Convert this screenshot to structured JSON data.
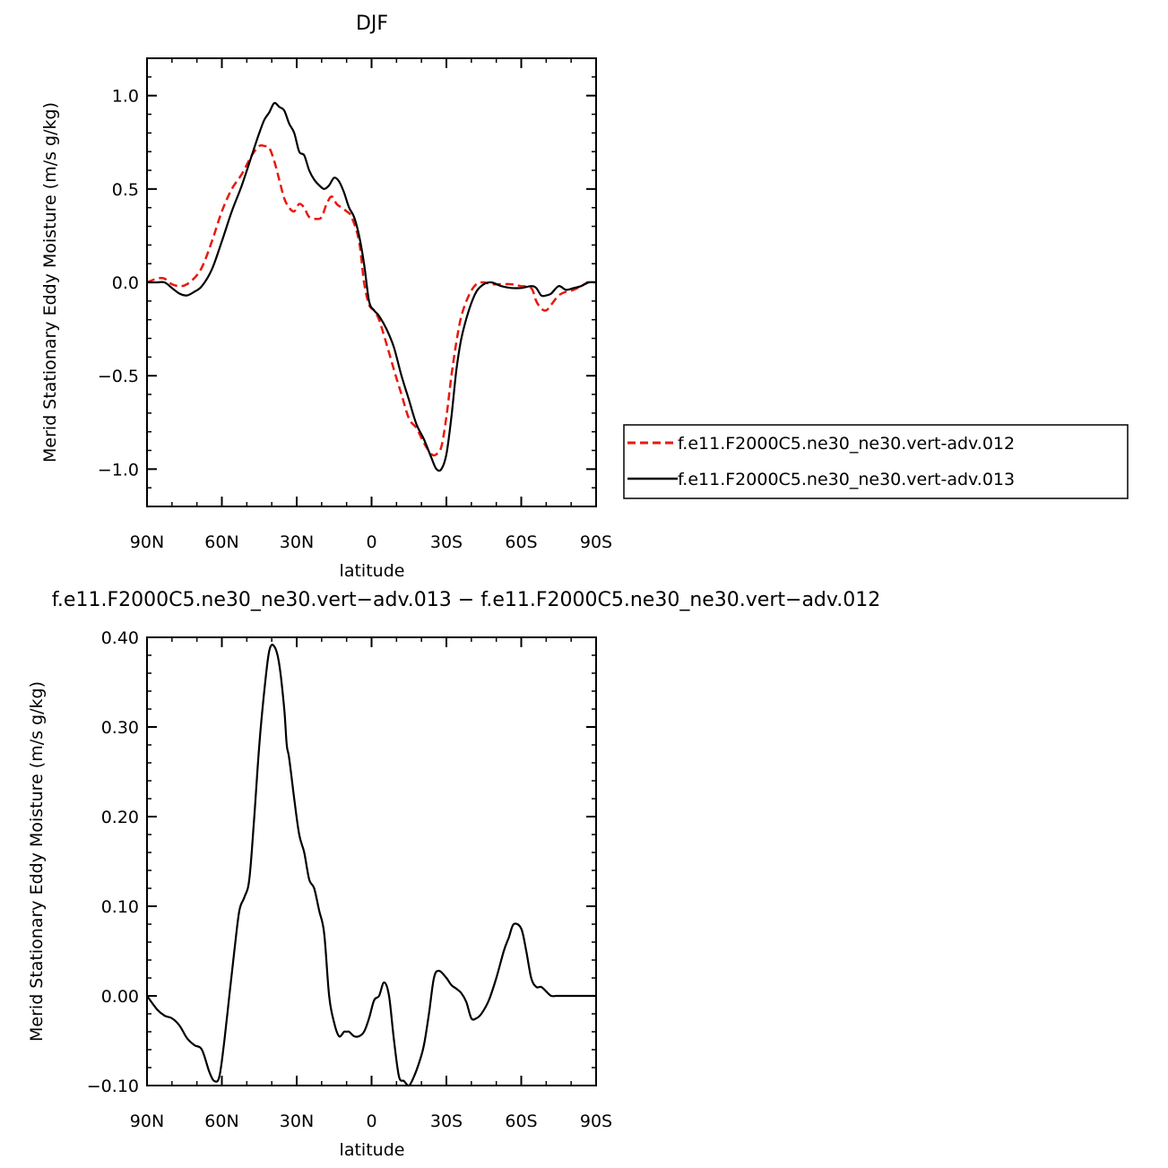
{
  "chart_data": [
    {
      "type": "line",
      "title": "DJF",
      "xlabel": "latitude",
      "ylabel": "Merid Stationary Eddy Moisture (m/s g/kg)",
      "xlim": [
        90,
        -90
      ],
      "ylim": [
        -1.2,
        1.2
      ],
      "x_ticks": [
        {
          "value": 90,
          "label": "90N"
        },
        {
          "value": 60,
          "label": "60N"
        },
        {
          "value": 30,
          "label": "30N"
        },
        {
          "value": 0,
          "label": "0"
        },
        {
          "value": -30,
          "label": "30S"
        },
        {
          "value": -60,
          "label": "60S"
        },
        {
          "value": -90,
          "label": "90S"
        }
      ],
      "y_ticks": [
        {
          "value": 1.0,
          "label": "1.0"
        },
        {
          "value": 0.5,
          "label": "0.5"
        },
        {
          "value": 0.0,
          "label": "0.0"
        },
        {
          "value": -0.5,
          "label": "−0.5"
        },
        {
          "value": -1.0,
          "label": "−1.0"
        }
      ],
      "legend_position": "right",
      "series": [
        {
          "name": "f.e11.F2000C5.ne30_ne30.vert-adv.012",
          "color": "#e8190f",
          "dash": "dashed",
          "x": [
            90,
            86,
            83,
            80,
            76,
            72,
            68,
            64,
            60,
            56,
            52,
            48,
            45,
            43,
            41,
            39,
            37,
            35,
            33,
            31,
            29,
            27,
            25,
            22,
            20,
            18,
            16,
            14,
            12,
            10,
            8,
            5,
            3,
            1,
            -1,
            -3,
            -6,
            -9,
            -12,
            -15,
            -18,
            -21,
            -24,
            -26,
            -28,
            -30,
            -32,
            -34,
            -36,
            -39,
            -42,
            -45,
            -48,
            -52,
            -56,
            -60,
            -64,
            -66,
            -68,
            -70,
            -72,
            -75,
            -78,
            -81,
            -84,
            -87,
            -90
          ],
          "y": [
            0.0,
            0.02,
            0.02,
            -0.01,
            -0.02,
            0.01,
            0.08,
            0.22,
            0.38,
            0.5,
            0.58,
            0.68,
            0.73,
            0.73,
            0.72,
            0.65,
            0.55,
            0.45,
            0.4,
            0.38,
            0.42,
            0.4,
            0.35,
            0.34,
            0.35,
            0.42,
            0.46,
            0.42,
            0.4,
            0.38,
            0.35,
            0.22,
            0.0,
            -0.12,
            -0.15,
            -0.2,
            -0.33,
            -0.47,
            -0.6,
            -0.73,
            -0.78,
            -0.86,
            -0.92,
            -0.92,
            -0.88,
            -0.72,
            -0.5,
            -0.32,
            -0.18,
            -0.07,
            -0.01,
            0.0,
            -0.01,
            -0.01,
            -0.01,
            -0.02,
            -0.03,
            -0.1,
            -0.14,
            -0.15,
            -0.12,
            -0.07,
            -0.05,
            -0.04,
            -0.02,
            0.0,
            0.0
          ]
        },
        {
          "name": "f.e11.F2000C5.ne30_ne30.vert-adv.013",
          "color": "#000000",
          "dash": "solid",
          "x": [
            90,
            86,
            83,
            80,
            77,
            74,
            71,
            68,
            64,
            60,
            56,
            52,
            48,
            45,
            43,
            41,
            39,
            37,
            35,
            33,
            31,
            29,
            27,
            25,
            23,
            21,
            19,
            17,
            15,
            13,
            11,
            9,
            7,
            5,
            3,
            1,
            -1,
            -3,
            -6,
            -9,
            -12,
            -15,
            -18,
            -21,
            -24,
            -26,
            -28,
            -30,
            -32,
            -34,
            -36,
            -39,
            -42,
            -45,
            -48,
            -52,
            -56,
            -60,
            -64,
            -66,
            -68,
            -70,
            -72,
            -75,
            -78,
            -81,
            -84,
            -87,
            -90
          ],
          "y": [
            0.0,
            0.0,
            0.0,
            -0.03,
            -0.06,
            -0.07,
            -0.05,
            -0.02,
            0.07,
            0.22,
            0.38,
            0.52,
            0.68,
            0.8,
            0.87,
            0.91,
            0.96,
            0.94,
            0.92,
            0.85,
            0.8,
            0.7,
            0.68,
            0.6,
            0.55,
            0.52,
            0.5,
            0.52,
            0.56,
            0.54,
            0.48,
            0.4,
            0.35,
            0.25,
            0.1,
            -0.1,
            -0.15,
            -0.18,
            -0.25,
            -0.35,
            -0.5,
            -0.63,
            -0.76,
            -0.84,
            -0.94,
            -1.0,
            -1.0,
            -0.92,
            -0.72,
            -0.47,
            -0.3,
            -0.15,
            -0.05,
            -0.01,
            0.0,
            -0.02,
            -0.03,
            -0.03,
            -0.02,
            -0.03,
            -0.07,
            -0.07,
            -0.06,
            -0.02,
            -0.04,
            -0.03,
            -0.02,
            0.0,
            0.0
          ]
        }
      ]
    },
    {
      "type": "line",
      "title": "f.e11.F2000C5.ne30_ne30.vert−adv.013 − f.e11.F2000C5.ne30_ne30.vert−adv.012",
      "xlabel": "latitude",
      "ylabel": "Merid Stationary Eddy Moisture (m/s g/kg)",
      "xlim": [
        90,
        -90
      ],
      "ylim": [
        -0.1,
        0.4
      ],
      "x_ticks": [
        {
          "value": 90,
          "label": "90N"
        },
        {
          "value": 60,
          "label": "60N"
        },
        {
          "value": 30,
          "label": "30N"
        },
        {
          "value": 0,
          "label": "0"
        },
        {
          "value": -30,
          "label": "30S"
        },
        {
          "value": -60,
          "label": "60S"
        },
        {
          "value": -90,
          "label": "90S"
        }
      ],
      "y_ticks": [
        {
          "value": 0.4,
          "label": "0.40"
        },
        {
          "value": 0.3,
          "label": "0.30"
        },
        {
          "value": 0.2,
          "label": "0.20"
        },
        {
          "value": 0.1,
          "label": "0.10"
        },
        {
          "value": 0.0,
          "label": "0.00"
        },
        {
          "value": -0.1,
          "label": "−0.10"
        }
      ],
      "series": [
        {
          "color": "#000000",
          "dash": "solid",
          "x": [
            90,
            86,
            83,
            80,
            77,
            74,
            71,
            68,
            65,
            63,
            61,
            59,
            57,
            55,
            53,
            51,
            49,
            47,
            45,
            43,
            41,
            39,
            37,
            35,
            34,
            33,
            31,
            29,
            27,
            25,
            23,
            21,
            19,
            17,
            15,
            13,
            11,
            10,
            9,
            7,
            5,
            3,
            1,
            -1,
            -3,
            -5,
            -7,
            -9,
            -11,
            -13,
            -15,
            -17,
            -19,
            -21,
            -23,
            -25,
            -27,
            -30,
            -32,
            -34,
            -36,
            -38,
            -40,
            -42,
            -44,
            -47,
            -50,
            -53,
            -55,
            -57,
            -60,
            -62,
            -64,
            -66,
            -68,
            -70,
            -72,
            -74,
            -76,
            -78,
            -80,
            -82,
            -85,
            -88,
            -90
          ],
          "y": [
            0.0,
            -0.015,
            -0.022,
            -0.025,
            -0.033,
            -0.047,
            -0.055,
            -0.06,
            -0.085,
            -0.095,
            -0.09,
            -0.05,
            0.0,
            0.05,
            0.095,
            0.11,
            0.13,
            0.2,
            0.28,
            0.34,
            0.385,
            0.39,
            0.37,
            0.32,
            0.28,
            0.265,
            0.22,
            0.18,
            0.16,
            0.13,
            0.12,
            0.095,
            0.07,
            0.0,
            -0.03,
            -0.045,
            -0.04,
            -0.04,
            -0.04,
            -0.045,
            -0.045,
            -0.04,
            -0.025,
            -0.005,
            0.0,
            0.015,
            0.0,
            -0.05,
            -0.09,
            -0.095,
            -0.1,
            -0.09,
            -0.075,
            -0.055,
            -0.02,
            0.02,
            0.028,
            0.02,
            0.012,
            0.008,
            0.003,
            -0.007,
            -0.025,
            -0.025,
            -0.02,
            -0.005,
            0.02,
            0.05,
            0.065,
            0.08,
            0.075,
            0.05,
            0.02,
            0.01,
            0.01,
            0.005,
            0.0,
            0.0,
            0.0,
            0.0,
            0.0,
            0.0,
            0.0,
            0.0,
            0.0
          ]
        }
      ]
    }
  ]
}
